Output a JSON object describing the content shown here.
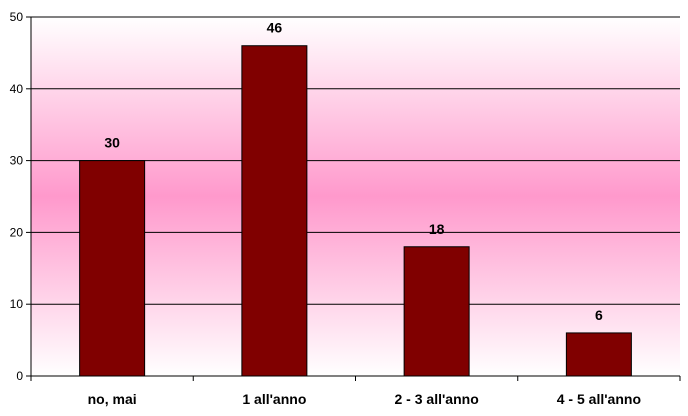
{
  "chart_data": {
    "type": "bar",
    "categories": [
      "no, mai",
      "1 all'anno",
      "2 - 3 all'anno",
      "4 - 5 all'anno"
    ],
    "values": [
      30,
      46,
      18,
      6
    ],
    "data_labels": [
      "30",
      "46",
      "18",
      "6"
    ],
    "y_ticks": [
      "0",
      "10",
      "20",
      "30",
      "40",
      "50"
    ],
    "ylim": [
      0,
      50
    ],
    "grid": true,
    "legend": "none",
    "bar_color": "#800000",
    "background_gradient": [
      "#ffffff",
      "#ff99cc",
      "#ffffff"
    ]
  }
}
